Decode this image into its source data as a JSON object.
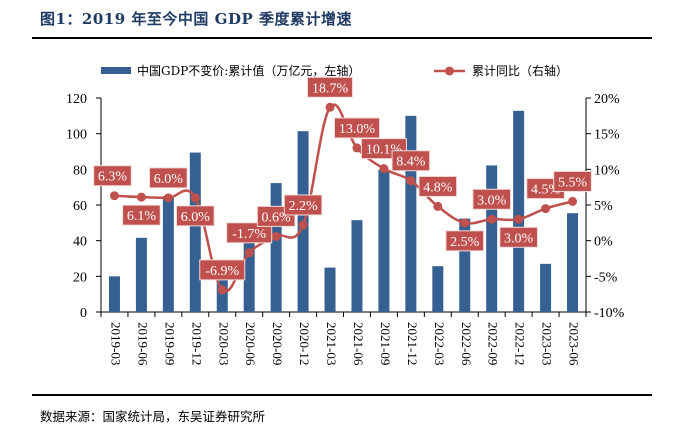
{
  "header": {
    "title": "图1：2019 年至今中国 GDP 季度累计增速"
  },
  "footer": {
    "source": "数据来源：国家统计局，东吴证券研究所"
  },
  "colors": {
    "bar": "#376092",
    "line": "#C0504D",
    "label_bg": "#C0504D",
    "label_text": "#FFFFFF"
  },
  "chart_data": {
    "type": "bar+line",
    "title": "2019 年至今中国 GDP 季度累计增速",
    "categories": [
      "2019-03",
      "2019-06",
      "2019-09",
      "2019-12",
      "2020-03",
      "2020-06",
      "2020-09",
      "2020-12",
      "2021-03",
      "2021-06",
      "2021-09",
      "2021-12",
      "2022-03",
      "2022-06",
      "2022-09",
      "2022-12",
      "2023-03",
      "2023-06"
    ],
    "series": [
      {
        "name": "中国GDP不变价:累计值（万亿元，左轴）",
        "type": "bar",
        "axis": "left",
        "values": [
          20.0,
          41.6,
          65.0,
          89.4,
          20.7,
          45.7,
          72.3,
          101.4,
          24.9,
          51.5,
          79.7,
          110.0,
          25.7,
          52.4,
          82.2,
          112.8,
          27.0,
          55.4
        ]
      },
      {
        "name": "累计同比（右轴）",
        "type": "line",
        "axis": "right",
        "values": [
          6.3,
          6.1,
          6.0,
          6.0,
          -6.9,
          -1.7,
          0.6,
          2.2,
          18.7,
          13.0,
          10.1,
          8.4,
          4.8,
          2.5,
          3.0,
          3.0,
          4.5,
          5.5
        ],
        "labels": [
          "6.3%",
          "6.1%",
          "6.0%",
          "6.0%",
          "-6.9%",
          "-1.7%",
          "0.6%",
          "2.2%",
          "18.7%",
          "13.0%",
          "10.1%",
          "8.4%",
          "4.8%",
          "2.5%",
          "3.0%",
          "3.0%",
          "4.5%",
          "5.5%"
        ],
        "label_pos": [
          "above",
          "below",
          "above",
          "below",
          "above",
          "above",
          "above",
          "above",
          "above",
          "above",
          "above",
          "above",
          "above",
          "below",
          "above",
          "below",
          "above",
          "above"
        ]
      }
    ],
    "left_axis": {
      "ylim": [
        0,
        120
      ],
      "ticks": [
        0,
        20,
        40,
        60,
        80,
        100,
        120
      ],
      "tick_labels": [
        "0",
        "20",
        "40",
        "60",
        "80",
        "100",
        "120"
      ]
    },
    "right_axis": {
      "ylim": [
        -10,
        20
      ],
      "ticks": [
        -10,
        -5,
        0,
        5,
        10,
        15,
        20
      ],
      "tick_labels": [
        "-10%",
        "-5%",
        "0%",
        "5%",
        "10%",
        "15%",
        "20%"
      ]
    },
    "legend": {
      "placement": "top",
      "items": [
        "中国GDP不变价:累计值（万亿元，左轴）",
        "累计同比（右轴）"
      ]
    },
    "grid": false,
    "xlabel": "",
    "ylabel": ""
  }
}
